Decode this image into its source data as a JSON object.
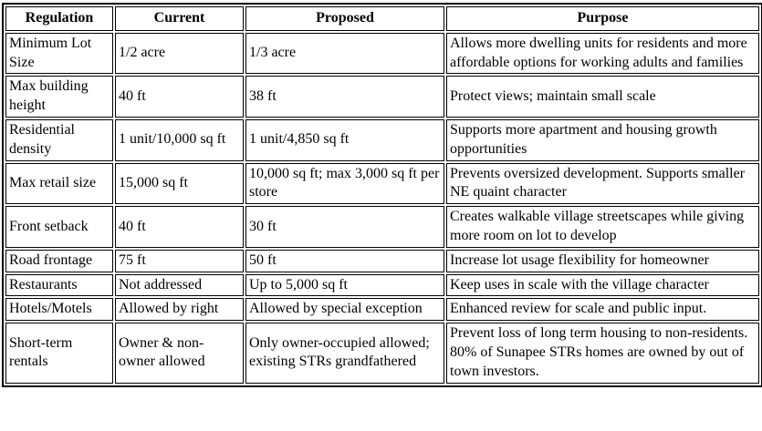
{
  "colors": {
    "border": "#000000",
    "text": "#000000",
    "background": "#ffffff"
  },
  "table": {
    "headers": [
      "Regulation",
      "Current",
      "Proposed",
      "Purpose"
    ],
    "rows": [
      {
        "regulation": "Minimum Lot Size",
        "current": "1/2 acre",
        "proposed": "1/3 acre",
        "purpose": "Allows more dwelling units for residents and more affordable options for working adults and families"
      },
      {
        "regulation": "Max building height",
        "current": "40 ft",
        "proposed": "38 ft",
        "purpose": "Protect views; maintain small scale"
      },
      {
        "regulation": "Residential density",
        "current": "1 unit/10,000 sq ft",
        "proposed": "1 unit/4,850 sq ft",
        "purpose": "Supports more apartment and housing growth opportunities"
      },
      {
        "regulation": "Max retail size",
        "current": "15,000 sq ft",
        "proposed": "10,000 sq ft; max 3,000 sq ft per store",
        "purpose": "Prevents oversized development. Supports smaller NE quaint character"
      },
      {
        "regulation": "Front setback",
        "current": "40 ft",
        "proposed": "30 ft",
        "purpose": "Creates walkable village streetscapes while giving more room on lot to develop"
      },
      {
        "regulation": "Road frontage",
        "current": "75 ft",
        "proposed": "50 ft",
        "purpose": "Increase lot usage flexibility for homeowner"
      },
      {
        "regulation": "Restaurants",
        "current": "Not addressed",
        "proposed": "Up to 5,000 sq ft",
        "purpose": "Keep uses in scale with the village character"
      },
      {
        "regulation": "Hotels/Motels",
        "current": "Allowed by right",
        "proposed": "Allowed by special exception",
        "purpose": "Enhanced review for scale and public input."
      },
      {
        "regulation": "Short-term rentals",
        "current": "Owner & non-owner allowed",
        "proposed": "Only owner-occupied allowed; existing STRs grandfathered",
        "purpose": "Prevent loss of long term housing to non-residents. 80% of Sunapee STRs homes are owned by out of town investors."
      }
    ]
  }
}
